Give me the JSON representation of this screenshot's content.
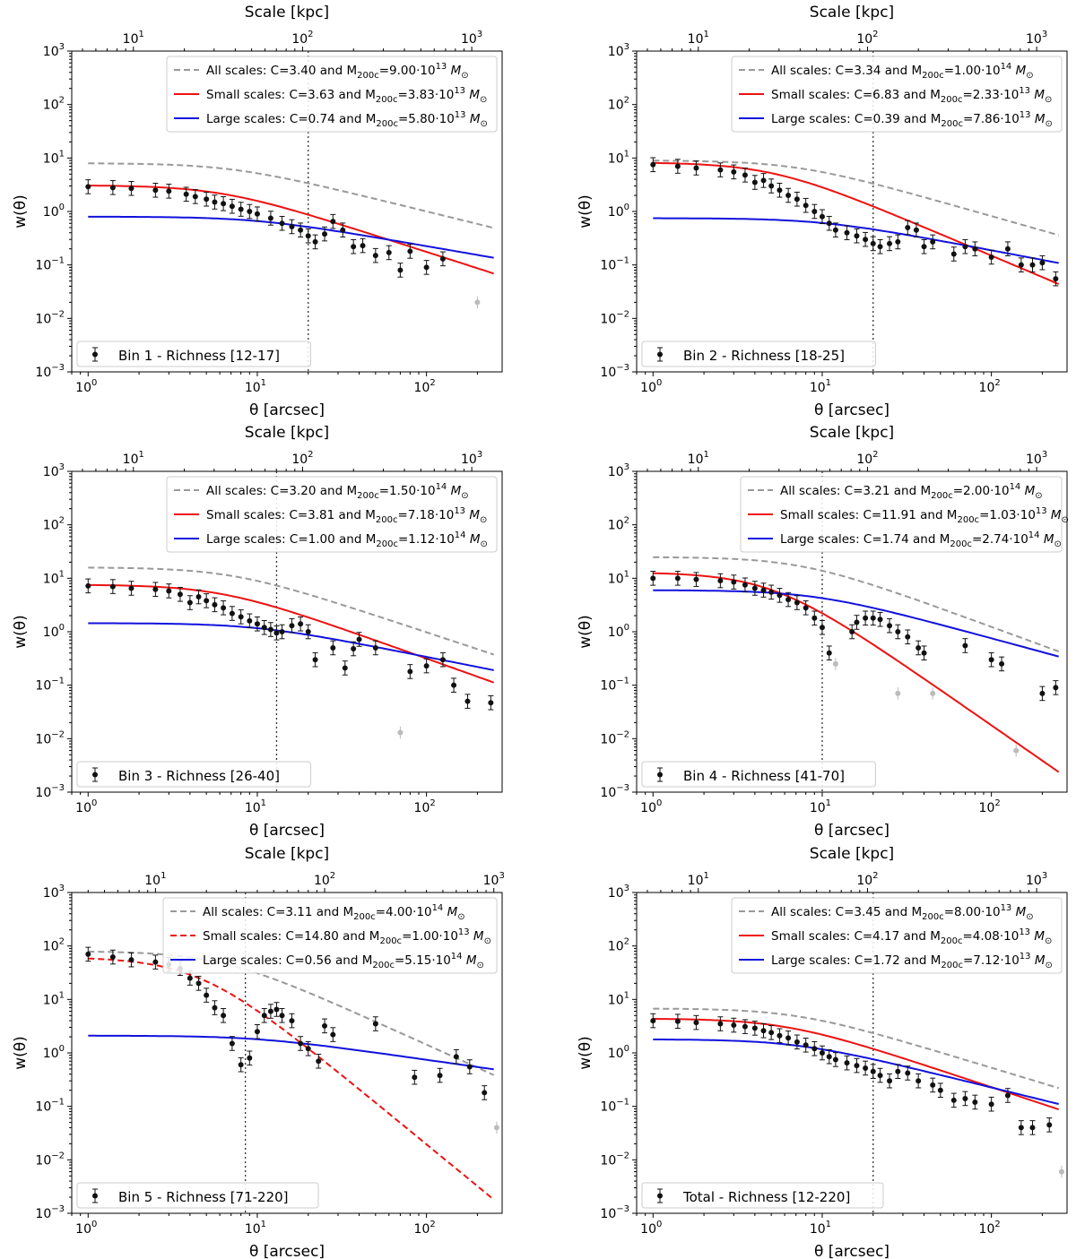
{
  "figure": {
    "xlabel": "θ [arcsec]",
    "ylabel": "w(θ)",
    "top_label": "Scale [kpc]"
  },
  "chart_data": [
    {
      "type": "line",
      "panel": "Bin 1 - Richness [12-17]",
      "xlim": [
        0.8,
        280
      ],
      "ylim": [
        0.001,
        1000
      ],
      "xscale": "log",
      "yscale": "log",
      "top_axis": {
        "label": "Scale [kpc]",
        "kpc_per_arcsec": 5.4
      },
      "cut_arcsec": 20,
      "models": [
        {
          "name": "All scales",
          "style": "dashed",
          "color": "#999999",
          "C": "3.40",
          "M": "9.00",
          "exp": "13",
          "amp": 8.0,
          "theta0": 7,
          "slope": 0.78
        },
        {
          "name": "Small scales",
          "style": "solid",
          "color": "#ee1111",
          "C": "3.63",
          "M": "3.83",
          "exp": "13",
          "amp": 3.1,
          "theta0": 6,
          "slope": 1.02
        },
        {
          "name": "Large scales",
          "style": "solid",
          "color": "#1111dd",
          "C": "0.74",
          "M": "5.80",
          "exp": "13",
          "amp": 0.8,
          "theta0": 10,
          "slope": 0.55
        }
      ],
      "points": [
        [
          1,
          2.9
        ],
        [
          1.4,
          2.8
        ],
        [
          1.8,
          2.7
        ],
        [
          2.5,
          2.5
        ],
        [
          3.0,
          2.4
        ],
        [
          3.8,
          2.1
        ],
        [
          4.3,
          1.9
        ],
        [
          5.0,
          1.7
        ],
        [
          5.6,
          1.5
        ],
        [
          6.3,
          1.4
        ],
        [
          7.1,
          1.25
        ],
        [
          8,
          1.1
        ],
        [
          9,
          1.0
        ],
        [
          10,
          0.9
        ],
        [
          12,
          0.75
        ],
        [
          14,
          0.6
        ],
        [
          16,
          0.52
        ],
        [
          18,
          0.45
        ],
        [
          20,
          0.35
        ],
        [
          22,
          0.27
        ],
        [
          25,
          0.38
        ],
        [
          28,
          0.65
        ],
        [
          32,
          0.45
        ],
        [
          37,
          0.22
        ],
        [
          42,
          0.23
        ],
        [
          50,
          0.15
        ],
        [
          60,
          0.17
        ],
        [
          70,
          0.08
        ],
        [
          80,
          0.18
        ],
        [
          100,
          0.09
        ],
        [
          125,
          0.13
        ]
      ],
      "faded": [
        [
          200,
          0.02
        ]
      ]
    },
    {
      "type": "line",
      "panel": "Bin 2 - Richness [18-25]",
      "xlim": [
        0.8,
        280
      ],
      "ylim": [
        0.001,
        1000
      ],
      "xscale": "log",
      "yscale": "log",
      "top_axis": {
        "label": "Scale [kpc]",
        "kpc_per_arcsec": 5.4
      },
      "cut_arcsec": 20,
      "models": [
        {
          "name": "All scales",
          "style": "dashed",
          "color": "#999999",
          "C": "3.34",
          "M": "1.00",
          "exp": "14",
          "amp": 9.0,
          "theta0": 7,
          "slope": 0.9
        },
        {
          "name": "Small scales",
          "style": "solid",
          "color": "#ee1111",
          "C": "6.83",
          "M": "2.33",
          "exp": "13",
          "amp": 8.3,
          "theta0": 5,
          "slope": 1.34
        },
        {
          "name": "Large scales",
          "style": "solid",
          "color": "#1111dd",
          "C": "0.39",
          "M": "7.86",
          "exp": "13",
          "amp": 0.75,
          "theta0": 10,
          "slope": 0.6
        }
      ],
      "points": [
        [
          1,
          7.5
        ],
        [
          1.4,
          7.0
        ],
        [
          1.8,
          6.5
        ],
        [
          2.5,
          6
        ],
        [
          3.0,
          5.5
        ],
        [
          3.5,
          4.8
        ],
        [
          4,
          3.5
        ],
        [
          4.5,
          3.8
        ],
        [
          5,
          3
        ],
        [
          5.6,
          2.5
        ],
        [
          6.3,
          2.0
        ],
        [
          7.1,
          1.7
        ],
        [
          8,
          1.3
        ],
        [
          9,
          1.0
        ],
        [
          10,
          0.8
        ],
        [
          11,
          0.6
        ],
        [
          12,
          0.45
        ],
        [
          14,
          0.4
        ],
        [
          16,
          0.35
        ],
        [
          18,
          0.3
        ],
        [
          20,
          0.25
        ],
        [
          22,
          0.22
        ],
        [
          25,
          0.25
        ],
        [
          28,
          0.27
        ],
        [
          32,
          0.5
        ],
        [
          36,
          0.45
        ],
        [
          40,
          0.22
        ],
        [
          45,
          0.27
        ],
        [
          60,
          0.16
        ],
        [
          70,
          0.22
        ],
        [
          80,
          0.2
        ],
        [
          100,
          0.14
        ],
        [
          125,
          0.2
        ],
        [
          150,
          0.1
        ],
        [
          175,
          0.1
        ],
        [
          200,
          0.11
        ],
        [
          240,
          0.055
        ]
      ],
      "faded": []
    },
    {
      "type": "line",
      "panel": "Bin 3 - Richness [26-40]",
      "xlim": [
        0.8,
        280
      ],
      "ylim": [
        0.001,
        1000
      ],
      "xscale": "log",
      "yscale": "log",
      "top_axis": {
        "label": "Scale [kpc]",
        "kpc_per_arcsec": 5.4
      },
      "cut_arcsec": 13,
      "models": [
        {
          "name": "All scales",
          "style": "dashed",
          "color": "#999999",
          "C": "3.20",
          "M": "1.50",
          "exp": "14",
          "amp": 16,
          "theta0": 7,
          "slope": 1.05
        },
        {
          "name": "Small scales",
          "style": "solid",
          "color": "#ee1111",
          "C": "3.81",
          "M": "7.18",
          "exp": "13",
          "amp": 7.6,
          "theta0": 6,
          "slope": 1.13
        },
        {
          "name": "Large scales",
          "style": "solid",
          "color": "#1111dd",
          "C": "1.00",
          "M": "1.12",
          "exp": "14",
          "amp": 1.45,
          "theta0": 10,
          "slope": 0.63
        }
      ],
      "points": [
        [
          1,
          7.2
        ],
        [
          1.4,
          7.0
        ],
        [
          1.8,
          6.5
        ],
        [
          2.5,
          6.2
        ],
        [
          3.0,
          5.8
        ],
        [
          3.5,
          5.0
        ],
        [
          4,
          3.5
        ],
        [
          4.5,
          4.5
        ],
        [
          5,
          3.8
        ],
        [
          5.6,
          3.2
        ],
        [
          6.3,
          2.8
        ],
        [
          7.1,
          2.2
        ],
        [
          8,
          1.9
        ],
        [
          9,
          1.6
        ],
        [
          10,
          1.4
        ],
        [
          11,
          1.2
        ],
        [
          12,
          1.1
        ],
        [
          13,
          0.95
        ],
        [
          14,
          1.0
        ],
        [
          16,
          1.3
        ],
        [
          18,
          1.4
        ],
        [
          20,
          1.0
        ],
        [
          22,
          0.3
        ],
        [
          28,
          0.5
        ],
        [
          33,
          0.21
        ],
        [
          37,
          0.48
        ],
        [
          40,
          0.72
        ],
        [
          50,
          0.5
        ],
        [
          80,
          0.18
        ],
        [
          100,
          0.23
        ],
        [
          125,
          0.3
        ],
        [
          145,
          0.1
        ],
        [
          175,
          0.05
        ],
        [
          240,
          0.047
        ]
      ],
      "faded": [
        [
          70,
          0.013
        ]
      ]
    },
    {
      "type": "line",
      "panel": "Bin 4 - Richness [41-70]",
      "xlim": [
        0.8,
        280
      ],
      "ylim": [
        0.001,
        1000
      ],
      "xscale": "log",
      "yscale": "log",
      "top_axis": {
        "label": "Scale [kpc]",
        "kpc_per_arcsec": 5.4
      },
      "cut_arcsec": 10,
      "models": [
        {
          "name": "All scales",
          "style": "dashed",
          "color": "#999999",
          "C": "3.21",
          "M": "2.00",
          "exp": "14",
          "amp": 25,
          "theta0": 7.5,
          "slope": 1.16
        },
        {
          "name": "Small scales",
          "style": "solid",
          "color": "#ee1111",
          "C": "11.91",
          "M": "1.03",
          "exp": "13",
          "amp": 13,
          "theta0": 5,
          "slope": 2.2
        },
        {
          "name": "Large scales",
          "style": "solid",
          "color": "#1111dd",
          "C": "1.74",
          "M": "2.74",
          "exp": "14",
          "amp": 6.0,
          "theta0": 9,
          "slope": 0.86
        }
      ],
      "points": [
        [
          1,
          10
        ],
        [
          1.4,
          10
        ],
        [
          1.8,
          9.5
        ],
        [
          2.5,
          9
        ],
        [
          3,
          8.5
        ],
        [
          3.5,
          7.5
        ],
        [
          4,
          6.5
        ],
        [
          4.5,
          6
        ],
        [
          5,
          5.5
        ],
        [
          5.6,
          4.8
        ],
        [
          6.3,
          4
        ],
        [
          7.1,
          3.5
        ],
        [
          8,
          2.8
        ],
        [
          9,
          1.8
        ],
        [
          10,
          1.2
        ],
        [
          11,
          0.4
        ],
        [
          15,
          1.0
        ],
        [
          16,
          1.5
        ],
        [
          18,
          1.8
        ],
        [
          20,
          1.8
        ],
        [
          22,
          1.7
        ],
        [
          25,
          1.3
        ],
        [
          28,
          1.0
        ],
        [
          32,
          0.8
        ],
        [
          37,
          0.5
        ],
        [
          40,
          0.4
        ],
        [
          70,
          0.55
        ],
        [
          100,
          0.3
        ],
        [
          115,
          0.25
        ],
        [
          200,
          0.07
        ],
        [
          240,
          0.09
        ]
      ],
      "faded": [
        [
          12,
          0.25
        ],
        [
          28,
          0.07
        ],
        [
          45,
          0.07
        ],
        [
          140,
          0.006
        ]
      ]
    },
    {
      "type": "line",
      "panel": "Bin 5 - Richness [71-220]",
      "xlim": [
        0.8,
        280
      ],
      "ylim": [
        0.001,
        1000
      ],
      "xscale": "log",
      "yscale": "log",
      "top_axis": {
        "label": "Scale [kpc]",
        "kpc_per_arcsec": 4.0
      },
      "cut_arcsec": 8.5,
      "models": [
        {
          "name": "All scales",
          "style": "dashed",
          "color": "#999999",
          "C": "3.11",
          "M": "4.00",
          "exp": "14",
          "amp": 80,
          "theta0": 6,
          "slope": 1.43
        },
        {
          "name": "Small scales",
          "style": "dashed",
          "color": "#ee1111",
          "C": "14.80",
          "M": "1.00",
          "exp": "13",
          "amp": 62,
          "theta0": 4.5,
          "slope": 2.6
        },
        {
          "name": "Large scales",
          "style": "solid",
          "color": "#1111dd",
          "C": "0.56",
          "M": "5.15",
          "exp": "14",
          "amp": 2.1,
          "theta0": 10,
          "slope": 0.45
        }
      ],
      "points": [
        [
          1,
          70
        ],
        [
          1.4,
          62
        ],
        [
          1.8,
          55
        ],
        [
          2.5,
          50
        ],
        [
          3,
          45
        ],
        [
          3.5,
          38
        ],
        [
          4,
          25
        ],
        [
          4.5,
          20
        ],
        [
          5,
          12
        ],
        [
          5.6,
          7
        ],
        [
          6.3,
          5
        ],
        [
          7.1,
          1.5
        ],
        [
          8,
          0.6
        ],
        [
          9,
          0.8
        ],
        [
          10,
          2.5
        ],
        [
          11,
          5
        ],
        [
          12,
          6
        ],
        [
          13,
          6.5
        ],
        [
          14,
          5
        ],
        [
          16,
          4
        ],
        [
          18,
          1.5
        ],
        [
          20,
          1.2
        ],
        [
          23,
          0.7
        ],
        [
          25,
          3.2
        ],
        [
          28,
          2.2
        ],
        [
          50,
          3.5
        ],
        [
          85,
          0.35
        ],
        [
          120,
          0.38
        ],
        [
          150,
          0.85
        ],
        [
          180,
          0.55
        ],
        [
          220,
          0.18
        ]
      ],
      "faded": [
        [
          260,
          0.04
        ]
      ]
    },
    {
      "type": "line",
      "panel": "Total - Richness [12-220]",
      "xlim": [
        0.8,
        280
      ],
      "ylim": [
        0.001,
        1000
      ],
      "xscale": "log",
      "yscale": "log",
      "top_axis": {
        "label": "Scale [kpc]",
        "kpc_per_arcsec": 5.4
      },
      "cut_arcsec": 20,
      "models": [
        {
          "name": "All scales",
          "style": "dashed",
          "color": "#999999",
          "C": "3.45",
          "M": "8.00",
          "exp": "13",
          "amp": 6.8,
          "theta0": 7,
          "slope": 0.96
        },
        {
          "name": "Small scales",
          "style": "solid",
          "color": "#ee1111",
          "C": "4.17",
          "M": "4.08",
          "exp": "13",
          "amp": 4.4,
          "theta0": 6,
          "slope": 1.05
        },
        {
          "name": "Large scales",
          "style": "solid",
          "color": "#1111dd",
          "C": "1.72",
          "M": "7.12",
          "exp": "13",
          "amp": 1.8,
          "theta0": 7,
          "slope": 0.78
        }
      ],
      "points": [
        [
          1,
          4
        ],
        [
          1.4,
          3.9
        ],
        [
          1.8,
          3.7
        ],
        [
          2.5,
          3.5
        ],
        [
          3,
          3.3
        ],
        [
          3.5,
          3.1
        ],
        [
          4,
          2.9
        ],
        [
          4.5,
          2.6
        ],
        [
          5,
          2.4
        ],
        [
          5.6,
          2.1
        ],
        [
          6.3,
          1.9
        ],
        [
          7.1,
          1.6
        ],
        [
          8,
          1.4
        ],
        [
          9,
          1.2
        ],
        [
          10,
          1.0
        ],
        [
          11,
          0.85
        ],
        [
          12,
          0.75
        ],
        [
          14,
          0.65
        ],
        [
          16,
          0.58
        ],
        [
          18,
          0.52
        ],
        [
          20,
          0.45
        ],
        [
          22,
          0.38
        ],
        [
          25,
          0.3
        ],
        [
          28,
          0.45
        ],
        [
          32,
          0.42
        ],
        [
          37,
          0.3
        ],
        [
          45,
          0.25
        ],
        [
          50,
          0.2
        ],
        [
          60,
          0.13
        ],
        [
          70,
          0.14
        ],
        [
          80,
          0.12
        ],
        [
          100,
          0.11
        ],
        [
          125,
          0.16
        ],
        [
          150,
          0.04
        ],
        [
          175,
          0.04
        ],
        [
          220,
          0.045
        ]
      ],
      "faded": [
        [
          260,
          0.006
        ]
      ]
    }
  ]
}
